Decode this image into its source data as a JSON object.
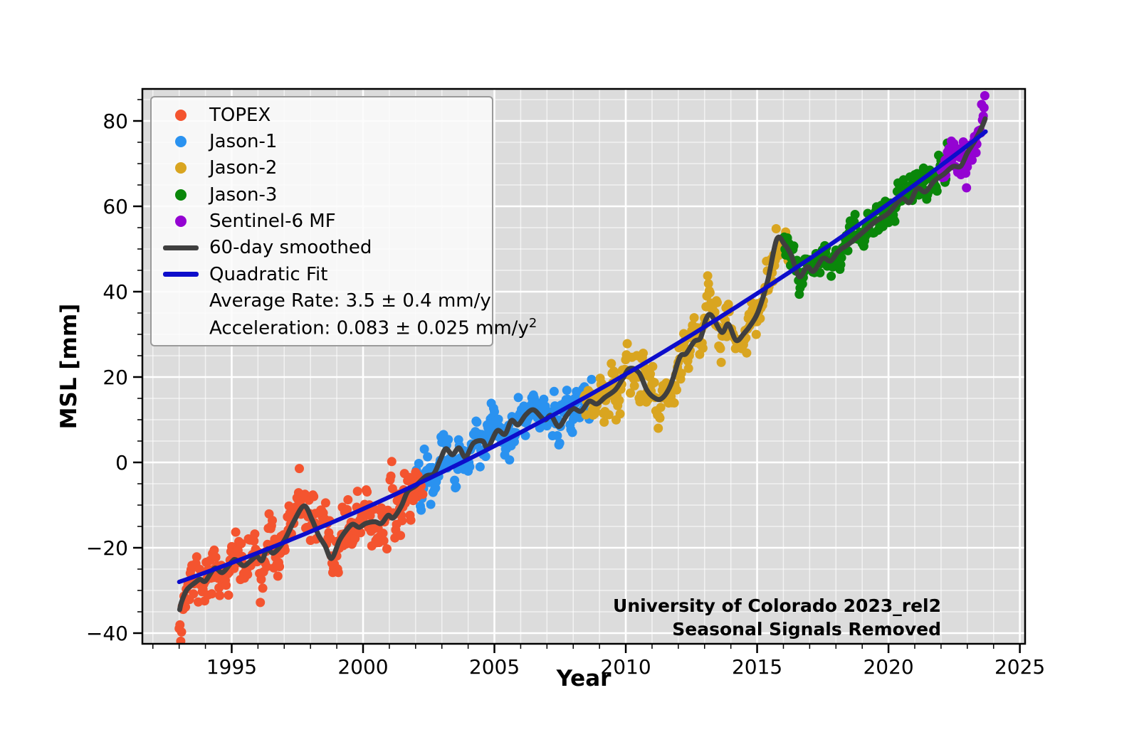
{
  "figure": {
    "background": "#ffffff",
    "axes_background": "#dcdcdc",
    "grid_major_color": "#ffffff",
    "grid_minor_color": "rgba(255,255,255,0.62)",
    "spine_color": "#000000"
  },
  "axis": {
    "x_label": "Year",
    "y_label": "MSL [mm]",
    "x_range": [
      1991.6,
      2025.2
    ],
    "y_range": [
      -42.5,
      87.5
    ],
    "x_major_ticks": [
      {
        "value": 1995,
        "label": "1995"
      },
      {
        "value": 2000,
        "label": "2000"
      },
      {
        "value": 2005,
        "label": "2005"
      },
      {
        "value": 2010,
        "label": "2010"
      },
      {
        "value": 2015,
        "label": "2015"
      },
      {
        "value": 2020,
        "label": "2020"
      },
      {
        "value": 2025,
        "label": "2025"
      }
    ],
    "y_major_ticks": [
      {
        "value": -40,
        "label": "−40"
      },
      {
        "value": -20,
        "label": "−20"
      },
      {
        "value": 0,
        "label": "0"
      },
      {
        "value": 20,
        "label": "20"
      },
      {
        "value": 40,
        "label": "40"
      },
      {
        "value": 60,
        "label": "60"
      },
      {
        "value": 80,
        "label": "80"
      }
    ],
    "x_minor_step": 1,
    "y_minor_step": 5
  },
  "legend": {
    "items": [
      {
        "label": "TOPEX",
        "marker": "dot",
        "color": "#f4542f"
      },
      {
        "label": "Jason-1",
        "marker": "dot",
        "color": "#2a92f0"
      },
      {
        "label": "Jason-2",
        "marker": "dot",
        "color": "#d9a520"
      },
      {
        "label": "Jason-3",
        "marker": "dot",
        "color": "#0a870a"
      },
      {
        "label": "Sentinel-6 MF",
        "marker": "dot",
        "color": "#9403d2"
      },
      {
        "label": "60-day smoothed",
        "marker": "line",
        "color": "#3f3f3f"
      },
      {
        "label": "Quadratic Fit",
        "marker": "line",
        "color": "#0d0dcb"
      }
    ],
    "rate_label": "Average Rate: 3.5 ± 0.4 mm/y",
    "accel_base": "Acceleration: 0.083 ± 0.025 mm/y",
    "accel_sup": "2"
  },
  "annotation": {
    "line1": "University of Colorado 2023_rel2",
    "line2": "Seasonal Signals Removed"
  },
  "chart_data": {
    "type": "scatter",
    "title": "",
    "xlabel": "Year",
    "ylabel": "MSL [mm]",
    "xlim": [
      1991.6,
      2025.2
    ],
    "ylim": [
      -42.5,
      87.5
    ],
    "grid": true,
    "legend_position": "upper left",
    "points_per_year": 33,
    "scatter_ar1_rho": 0.5,
    "missions": [
      {
        "name": "TOPEX",
        "color": "#f4542f",
        "start": 1993.0,
        "end": 2002.3,
        "sigma": 3.4,
        "seed": 11,
        "z": 2
      },
      {
        "name": "Jason-1",
        "color": "#2a92f0",
        "start": 2002.0,
        "end": 2008.7,
        "sigma": 2.9,
        "seed": 22,
        "z": 1
      },
      {
        "name": "Jason-2",
        "color": "#d9a520",
        "start": 2008.42,
        "end": 2016.2,
        "sigma": 3.0,
        "seed": 33,
        "z": 3
      },
      {
        "name": "Jason-3",
        "color": "#0a870a",
        "start": 2016.03,
        "end": 2022.25,
        "sigma": 2.2,
        "seed": 44,
        "z": 4
      },
      {
        "name": "Sentinel-6 MF",
        "color": "#9403d2",
        "start": 2022.0,
        "end": 2023.7,
        "sigma": 2.8,
        "seed": 55,
        "z": 5
      }
    ],
    "smoothed": {
      "name": "60-day smoothed",
      "color": "#3f3f3f",
      "points": [
        [
          1993.02,
          -34.5
        ],
        [
          1993.1,
          -32.5
        ],
        [
          1993.3,
          -29.8
        ],
        [
          1993.6,
          -28.2
        ],
        [
          1993.8,
          -27.4
        ],
        [
          1994.0,
          -27.8
        ],
        [
          1994.35,
          -24.8
        ],
        [
          1994.65,
          -25.8
        ],
        [
          1995.0,
          -23.3
        ],
        [
          1995.15,
          -22.8
        ],
        [
          1995.45,
          -24.2
        ],
        [
          1995.7,
          -23.2
        ],
        [
          1995.95,
          -22.0
        ],
        [
          1996.15,
          -23.0
        ],
        [
          1996.35,
          -20.3
        ],
        [
          1996.6,
          -21.2
        ],
        [
          1997.0,
          -18.3
        ],
        [
          1997.35,
          -14.0
        ],
        [
          1997.75,
          -10.2
        ],
        [
          1998.05,
          -13.3
        ],
        [
          1998.3,
          -17.0
        ],
        [
          1998.55,
          -19.5
        ],
        [
          1998.8,
          -22.5
        ],
        [
          1999.1,
          -18.3
        ],
        [
          1999.35,
          -16.0
        ],
        [
          1999.6,
          -14.5
        ],
        [
          1999.85,
          -15.2
        ],
        [
          2000.1,
          -14.3
        ],
        [
          2000.45,
          -13.9
        ],
        [
          2000.7,
          -14.3
        ],
        [
          2000.95,
          -12.4
        ],
        [
          2001.15,
          -13.0
        ],
        [
          2001.45,
          -10.3
        ],
        [
          2001.7,
          -6.8
        ],
        [
          2002.0,
          -5.5
        ],
        [
          2002.4,
          -3.2
        ],
        [
          2002.7,
          -2.6
        ],
        [
          2002.95,
          0.8
        ],
        [
          2003.15,
          3.2
        ],
        [
          2003.4,
          1.8
        ],
        [
          2003.65,
          3.4
        ],
        [
          2003.9,
          1.2
        ],
        [
          2004.2,
          4.5
        ],
        [
          2004.55,
          5.0
        ],
        [
          2004.75,
          3.4
        ],
        [
          2005.1,
          7.4
        ],
        [
          2005.4,
          6.6
        ],
        [
          2005.65,
          9.8
        ],
        [
          2005.9,
          8.8
        ],
        [
          2006.2,
          11.2
        ],
        [
          2006.5,
          12.3
        ],
        [
          2006.9,
          10.0
        ],
        [
          2007.15,
          11.0
        ],
        [
          2007.45,
          8.4
        ],
        [
          2007.75,
          11.0
        ],
        [
          2008.0,
          12.6
        ],
        [
          2008.3,
          12.0
        ],
        [
          2008.6,
          14.3
        ],
        [
          2008.9,
          13.7
        ],
        [
          2009.2,
          15.2
        ],
        [
          2009.6,
          17.0
        ],
        [
          2009.9,
          19.8
        ],
        [
          2010.15,
          22.0
        ],
        [
          2010.5,
          21.0
        ],
        [
          2010.8,
          17.0
        ],
        [
          2011.05,
          15.3
        ],
        [
          2011.35,
          14.9
        ],
        [
          2011.7,
          18.0
        ],
        [
          2012.05,
          24.6
        ],
        [
          2012.3,
          25.5
        ],
        [
          2012.6,
          28.3
        ],
        [
          2012.85,
          29.2
        ],
        [
          2013.05,
          33.5
        ],
        [
          2013.25,
          34.5
        ],
        [
          2013.65,
          30.5
        ],
        [
          2013.9,
          32.4
        ],
        [
          2014.2,
          28.6
        ],
        [
          2014.5,
          30.2
        ],
        [
          2014.8,
          32.6
        ],
        [
          2015.05,
          35.5
        ],
        [
          2015.4,
          42.5
        ],
        [
          2015.75,
          52.3
        ],
        [
          2016.05,
          51.0
        ],
        [
          2016.3,
          48.5
        ],
        [
          2016.6,
          43.5
        ],
        [
          2016.9,
          45.8
        ],
        [
          2017.15,
          44.8
        ],
        [
          2017.5,
          47.8
        ],
        [
          2017.8,
          47.2
        ],
        [
          2018.1,
          49.5
        ],
        [
          2018.5,
          51.2
        ],
        [
          2019.0,
          53.8
        ],
        [
          2019.5,
          56.4
        ],
        [
          2020.0,
          58.4
        ],
        [
          2020.5,
          61.8
        ],
        [
          2020.8,
          60.9
        ],
        [
          2021.1,
          64.2
        ],
        [
          2021.4,
          63.4
        ],
        [
          2021.75,
          66.0
        ],
        [
          2022.1,
          67.5
        ],
        [
          2022.45,
          69.3
        ],
        [
          2022.75,
          69.4
        ],
        [
          2023.0,
          72.5
        ],
        [
          2023.3,
          75.5
        ],
        [
          2023.55,
          78.5
        ],
        [
          2023.68,
          80.5
        ]
      ]
    },
    "quadratic_fit": {
      "name": "Quadratic Fit",
      "color": "#0d0dcb",
      "t_start": 1993.0,
      "t_end": 2023.7,
      "t0": 1993,
      "c0": -28.0,
      "c1": 2.15,
      "c2": 0.0419
    },
    "average_rate": "3.5 ± 0.4 mm/y",
    "acceleration": "0.083 ± 0.025 mm/y²"
  }
}
